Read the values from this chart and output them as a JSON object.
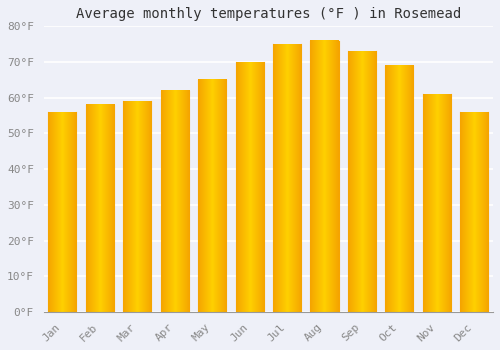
{
  "title": "Average monthly temperatures (°F ) in Rosemead",
  "months": [
    "Jan",
    "Feb",
    "Mar",
    "Apr",
    "May",
    "Jun",
    "Jul",
    "Aug",
    "Sep",
    "Oct",
    "Nov",
    "Dec"
  ],
  "values": [
    56,
    58,
    59,
    62,
    65,
    70,
    75,
    76,
    73,
    69,
    61,
    56
  ],
  "bar_color_center": "#FFD000",
  "bar_color_edge": "#F5A400",
  "background_color": "#EEF0F8",
  "plot_bg_color": "#EEF0F8",
  "grid_color": "#FFFFFF",
  "ylim": [
    0,
    80
  ],
  "ytick_step": 10,
  "title_fontsize": 10,
  "tick_fontsize": 8,
  "tick_color": "#888888",
  "bar_width": 0.75,
  "font_family": "monospace"
}
